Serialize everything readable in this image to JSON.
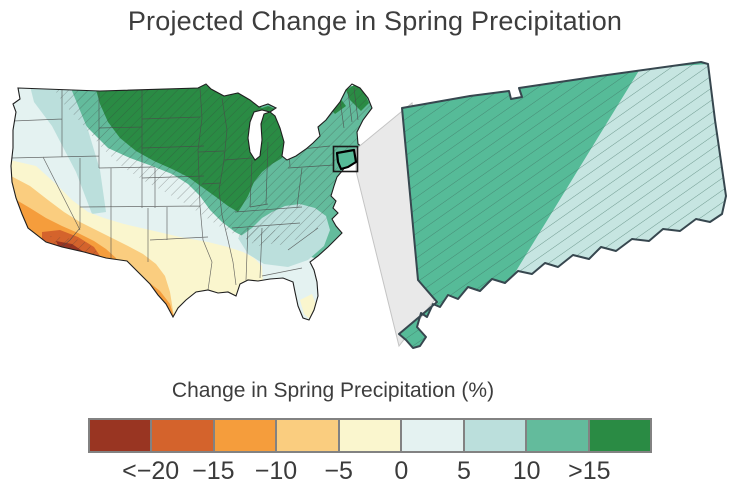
{
  "title": "Projected Change in Spring Precipitation",
  "legend": {
    "title": "Change in Spring Precipitation (%)",
    "tick_labels": [
      "<−20",
      "−15",
      "−10",
      "−5",
      "0",
      "5",
      "10",
      ">15"
    ],
    "colors": [
      "#993522",
      "#D4632C",
      "#F59D3C",
      "#FACD7F",
      "#FAF6CE",
      "#E4F2F1",
      "#BBDFDC",
      "#63BB9C",
      "#2A8B44"
    ]
  },
  "palette": {
    "c1": "#993522",
    "c2": "#D4632C",
    "c3": "#F59D3C",
    "c4": "#FACD7F",
    "c5": "#FAF6CE",
    "c6": "#E4F2F1",
    "c7": "#BBDFDC",
    "c8": "#63BB9C",
    "c9": "#2A8B44",
    "inset_west": "#56BB98",
    "inset_east": "#C6E5E1",
    "wedge_gray": "#E9E9E9"
  },
  "map_data": {
    "type": "choropleth",
    "variable": "Change in Spring Precipitation (%)",
    "scale_breaks": [
      -20,
      -15,
      -10,
      -5,
      0,
      5,
      10,
      15
    ],
    "regions_by_bucket": {
      "north_central_plains_great_lakes": ">15",
      "northern_tier_northeast_appalachians": "10 to 15",
      "mid_south_and_southeast_interior": "5 to 10",
      "central_band_and_florida": "0 to 5",
      "gulf_coast_and_south_central": "-5 to 0",
      "southern_california_west_texas_band": "-10 to -5",
      "arizona_new_mexico_south_texas": "-15 to -10",
      "arizona_border_ring": "-20 to -15",
      "arizona_core": "<-20",
      "connecticut_inset_west": "10 to 15",
      "connecticut_inset_east": "5 to 10"
    },
    "hatching": "diagonal significance hatching over the northern half of the US, small patches in the Southeast and the Southwest core, and the entire Connecticut inset"
  }
}
